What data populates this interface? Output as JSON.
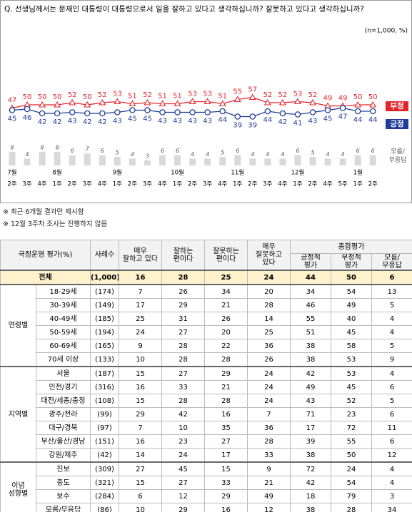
{
  "chart_data": {
    "type": "line",
    "title": "Q. 선생님께서는 문재인 대통령이 대통령으로서 일을 잘하고 있다고 생각하십니까? 잘못하고 있다고 생각하십니까?",
    "subtitle": "(n=1,000, %)",
    "categories": [
      "2주",
      "3주",
      "4주",
      "1주",
      "2주",
      "3주",
      "4주",
      "1주",
      "2주",
      "3주",
      "4주",
      "1주",
      "2주",
      "3주",
      "4주",
      "1주",
      "2주",
      "3주",
      "4주",
      "1주",
      "2주",
      "4주",
      "5주",
      "1주",
      "2주"
    ],
    "month_labels": [
      "7월",
      null,
      null,
      "8월",
      null,
      null,
      null,
      "9월",
      null,
      null,
      null,
      "10월",
      null,
      null,
      null,
      "11월",
      null,
      null,
      null,
      "12월",
      null,
      null,
      null,
      "1월",
      null
    ],
    "series": [
      {
        "name": "부정",
        "type": "line",
        "color": "#e3242b",
        "marker": "triangle",
        "values": [
          47,
          50,
          50,
          50,
          52,
          50,
          52,
          53,
          51,
          52,
          51,
          51,
          53,
          53,
          51,
          55,
          57,
          52,
          52,
          53,
          52,
          49,
          49,
          50,
          50
        ]
      },
      {
        "name": "긍정",
        "type": "line",
        "color": "#1f3c98",
        "marker": "circle",
        "values": [
          45,
          46,
          42,
          42,
          43,
          42,
          42,
          43,
          45,
          45,
          43,
          43,
          43,
          43,
          44,
          39,
          39,
          44,
          42,
          41,
          43,
          45,
          47,
          44,
          44
        ]
      },
      {
        "name": "모름/\n무응답",
        "type": "bar",
        "color": "#d9d9d9",
        "values": [
          8,
          4,
          8,
          8,
          6,
          7,
          6,
          5,
          4,
          3,
          6,
          6,
          4,
          4,
          5,
          6,
          4,
          4,
          4,
          6,
          5,
          4,
          4,
          6,
          6
        ]
      }
    ]
  },
  "notes": [
    "※ 최근 6개월 결과만 제시함",
    "※ 12월 3주차 조사는 진행하지 않음"
  ],
  "table": {
    "title": "국정운영 평가(%)",
    "columns": [
      "사례수",
      "매우\n잘하고 있다",
      "잘하는\n편이다",
      "잘못하는\n편이다",
      "매우\n잘못하고\n있다"
    ],
    "summary_header": "종합평가",
    "summary_columns": [
      "긍정적\n평가",
      "부정적\n평가",
      "모름/\n무응답"
    ],
    "total": [
      "전체",
      "(1,000)",
      16,
      28,
      25,
      24,
      44,
      50,
      6
    ],
    "groups": [
      {
        "name": "연령별",
        "rows": [
          [
            "18-29세",
            "(174)",
            7,
            26,
            34,
            20,
            34,
            54,
            13
          ],
          [
            "30-39세",
            "(149)",
            17,
            29,
            21,
            28,
            46,
            49,
            5
          ],
          [
            "40-49세",
            "(185)",
            25,
            31,
            26,
            14,
            55,
            40,
            4
          ],
          [
            "50-59세",
            "(194)",
            24,
            27,
            20,
            25,
            51,
            45,
            4
          ],
          [
            "60-69세",
            "(165)",
            9,
            28,
            22,
            36,
            38,
            58,
            5
          ],
          [
            "70세 이상",
            "(133)",
            10,
            28,
            28,
            26,
            38,
            53,
            9
          ]
        ]
      },
      {
        "name": "지역별",
        "rows": [
          [
            "서울",
            "(187)",
            15,
            27,
            29,
            24,
            42,
            53,
            4
          ],
          [
            "인천/경기",
            "(316)",
            16,
            33,
            21,
            24,
            49,
            45,
            6
          ],
          [
            "대전/세종/충청",
            "(108)",
            15,
            28,
            28,
            24,
            43,
            52,
            5
          ],
          [
            "광주/전라",
            "(99)",
            29,
            42,
            16,
            7,
            71,
            23,
            6
          ],
          [
            "대구/경북",
            "(97)",
            7,
            10,
            35,
            36,
            17,
            72,
            11
          ],
          [
            "부산/울산/경남",
            "(151)",
            16,
            23,
            27,
            28,
            39,
            55,
            6
          ],
          [
            "강원/제주",
            "(42)",
            14,
            24,
            17,
            33,
            38,
            50,
            12
          ]
        ]
      },
      {
        "name": "이념\n성향별",
        "rows": [
          [
            "진보",
            "(309)",
            27,
            45,
            15,
            9,
            72,
            24,
            4
          ],
          [
            "중도",
            "(321)",
            15,
            27,
            33,
            21,
            42,
            54,
            4
          ],
          [
            "보수",
            "(284)",
            6,
            12,
            29,
            49,
            18,
            79,
            3
          ],
          [
            "모름/무응답",
            "(86)",
            10,
            29,
            16,
            12,
            38,
            28,
            34
          ]
        ]
      }
    ]
  }
}
